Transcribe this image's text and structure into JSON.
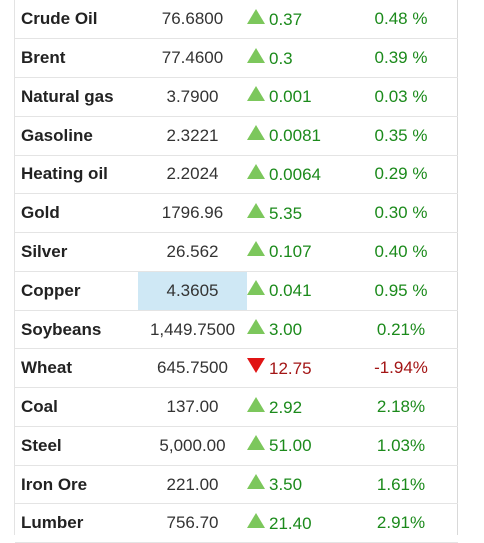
{
  "colors": {
    "up_arrow": "#7cc75c",
    "down_arrow": "#e01414",
    "up_text": "#1b8a1b",
    "down_text": "#a31515",
    "highlight_cell": "#cfe8f5"
  },
  "rows": [
    {
      "name": "Crude Oil",
      "price": "76.6800",
      "direction": "up",
      "direction_icon": "up-triangle-icon",
      "change": "0.37",
      "percent": "0.48 %"
    },
    {
      "name": "Brent",
      "price": "77.4600",
      "direction": "up",
      "direction_icon": "up-triangle-icon",
      "change": "0.3",
      "percent": "0.39 %"
    },
    {
      "name": "Natural gas",
      "price": "3.7900",
      "direction": "up",
      "direction_icon": "up-triangle-icon",
      "change": "0.001",
      "percent": "0.03 %"
    },
    {
      "name": "Gasoline",
      "price": "2.3221",
      "direction": "up",
      "direction_icon": "up-triangle-icon",
      "change": "0.0081",
      "percent": "0.35 %"
    },
    {
      "name": "Heating oil",
      "price": "2.2024",
      "direction": "up",
      "direction_icon": "up-triangle-icon",
      "change": "0.0064",
      "percent": "0.29 %"
    },
    {
      "name": "Gold",
      "price": "1796.96",
      "direction": "up",
      "direction_icon": "up-triangle-icon",
      "change": "5.35",
      "percent": "0.30 %"
    },
    {
      "name": "Silver",
      "price": "26.562",
      "direction": "up",
      "direction_icon": "up-triangle-icon",
      "change": "0.107",
      "percent": "0.40 %"
    },
    {
      "name": "Copper",
      "price": "4.3605",
      "direction": "up",
      "direction_icon": "up-triangle-icon",
      "change": "0.041",
      "percent": "0.95 %",
      "price_highlighted": true
    },
    {
      "name": "Soybeans",
      "price": "1,449.7500",
      "direction": "up",
      "direction_icon": "up-triangle-icon",
      "change": "3.00",
      "percent": "0.21%"
    },
    {
      "name": "Wheat",
      "price": "645.7500",
      "direction": "down",
      "direction_icon": "down-triangle-icon",
      "change": "12.75",
      "percent": "-1.94%"
    },
    {
      "name": "Coal",
      "price": "137.00",
      "direction": "up",
      "direction_icon": "up-triangle-icon",
      "change": "2.92",
      "percent": "2.18%"
    },
    {
      "name": "Steel",
      "price": "5,000.00",
      "direction": "up",
      "direction_icon": "up-triangle-icon",
      "change": "51.00",
      "percent": "1.03%"
    },
    {
      "name": "Iron Ore",
      "price": "221.00",
      "direction": "up",
      "direction_icon": "up-triangle-icon",
      "change": "3.50",
      "percent": "1.61%"
    },
    {
      "name": "Lumber",
      "price": "756.70",
      "direction": "up",
      "direction_icon": "up-triangle-icon",
      "change": "21.40",
      "percent": "2.91%"
    }
  ]
}
